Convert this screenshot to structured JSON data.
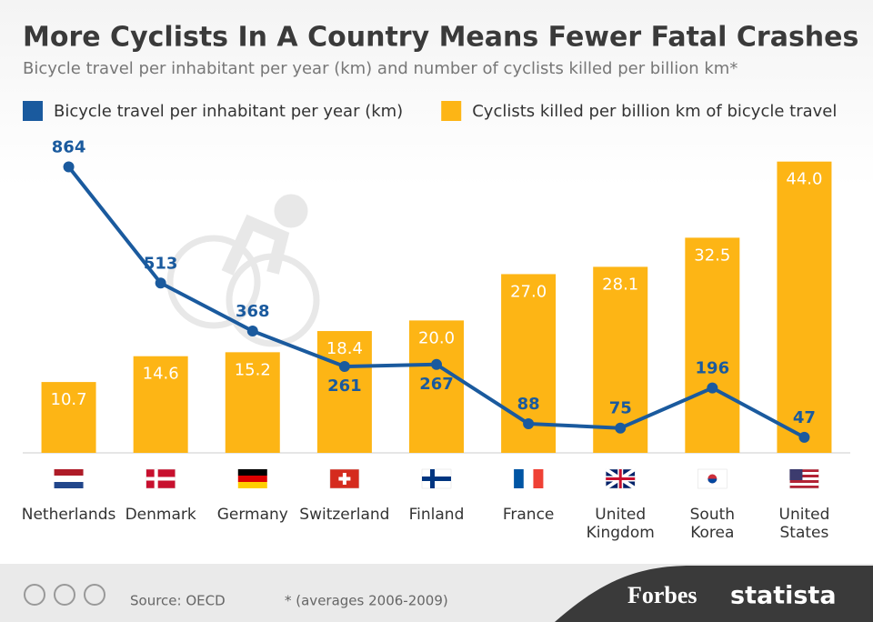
{
  "chart_data": {
    "type": "combo",
    "title": "More Cyclists In A Country Means Fewer Fatal Crashes",
    "subtitle": "Bicycle travel per inhabitant per year (km) and number of cyclists killed per billion km*",
    "categories": [
      "Netherlands",
      "Denmark",
      "Germany",
      "Switzerland",
      "Finland",
      "France",
      "United Kingdom",
      "South Korea",
      "United States"
    ],
    "series": [
      {
        "name": "Cyclists killed per billion km of bicycle travel",
        "type": "bar",
        "color": "#fdb515",
        "values": [
          10.7,
          14.6,
          15.2,
          18.4,
          20.0,
          27.0,
          28.1,
          32.5,
          44.0
        ],
        "value_labels": [
          "10.7",
          "14.6",
          "15.2",
          "18.4",
          "20.0",
          "27.0",
          "28.1",
          "32.5",
          "44.0"
        ]
      },
      {
        "name": "Bicycle travel per inhabitant per year (km)",
        "type": "line",
        "axis": "y2",
        "color": "#1a5a9e",
        "values": [
          864,
          513,
          368,
          261,
          267,
          88,
          75,
          196,
          47
        ]
      }
    ],
    "legend_order": [
      1,
      0
    ],
    "ylim": [
      0,
      50
    ],
    "y2lim": [
      0,
      1000
    ],
    "source": "Source: OECD",
    "note": "* (averages 2006-2009)",
    "logos": [
      "Forbes",
      "statista"
    ]
  }
}
